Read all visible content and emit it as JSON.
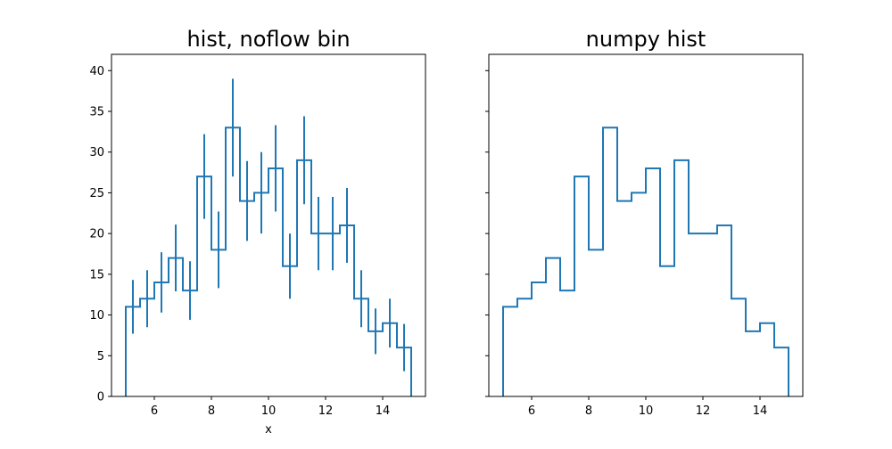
{
  "chart_data": [
    {
      "type": "histogram-step",
      "title": "hist, noflow bin",
      "xlabel": "x",
      "ylabel": "",
      "xlim": [
        4.5,
        15.5
      ],
      "ylim": [
        0,
        42
      ],
      "xticks": [
        6,
        8,
        10,
        12,
        14
      ],
      "yticks": [
        0,
        5,
        10,
        15,
        20,
        25,
        30,
        35,
        40
      ],
      "bin_edges": [
        5.0,
        5.5,
        6.0,
        6.5,
        7.0,
        7.5,
        8.0,
        8.5,
        9.0,
        9.5,
        10.0,
        10.5,
        11.0,
        11.5,
        12.0,
        12.5,
        13.0,
        13.5,
        14.0,
        14.5,
        15.0
      ],
      "counts": [
        11,
        12,
        14,
        17,
        13,
        27,
        18,
        33,
        24,
        25,
        28,
        16,
        29,
        20,
        20,
        21,
        12,
        8,
        9,
        6
      ],
      "errors": [
        3.3,
        3.5,
        3.7,
        4.1,
        3.6,
        5.2,
        4.7,
        6.0,
        4.9,
        5.0,
        5.3,
        4.0,
        5.4,
        4.5,
        4.5,
        4.6,
        3.5,
        2.8,
        3.0,
        2.9
      ],
      "color": "#1f77b4"
    },
    {
      "type": "histogram-step",
      "title": "numpy hist",
      "xlabel": "",
      "ylabel": "",
      "xlim": [
        4.5,
        15.5
      ],
      "ylim": [
        0,
        42
      ],
      "xticks": [
        6,
        8,
        10,
        12,
        14
      ],
      "yticks": [
        0,
        5,
        10,
        15,
        20,
        25,
        30,
        35,
        40
      ],
      "y_tick_labels_shown": false,
      "bin_edges": [
        5.0,
        5.5,
        6.0,
        6.5,
        7.0,
        7.5,
        8.0,
        8.5,
        9.0,
        9.5,
        10.0,
        10.5,
        11.0,
        11.5,
        12.0,
        12.5,
        13.0,
        13.5,
        14.0,
        14.5,
        15.0
      ],
      "counts": [
        11,
        12,
        14,
        17,
        13,
        27,
        18,
        33,
        24,
        25,
        28,
        16,
        29,
        20,
        20,
        21,
        12,
        8,
        9,
        6
      ],
      "color": "#1f77b4"
    }
  ]
}
